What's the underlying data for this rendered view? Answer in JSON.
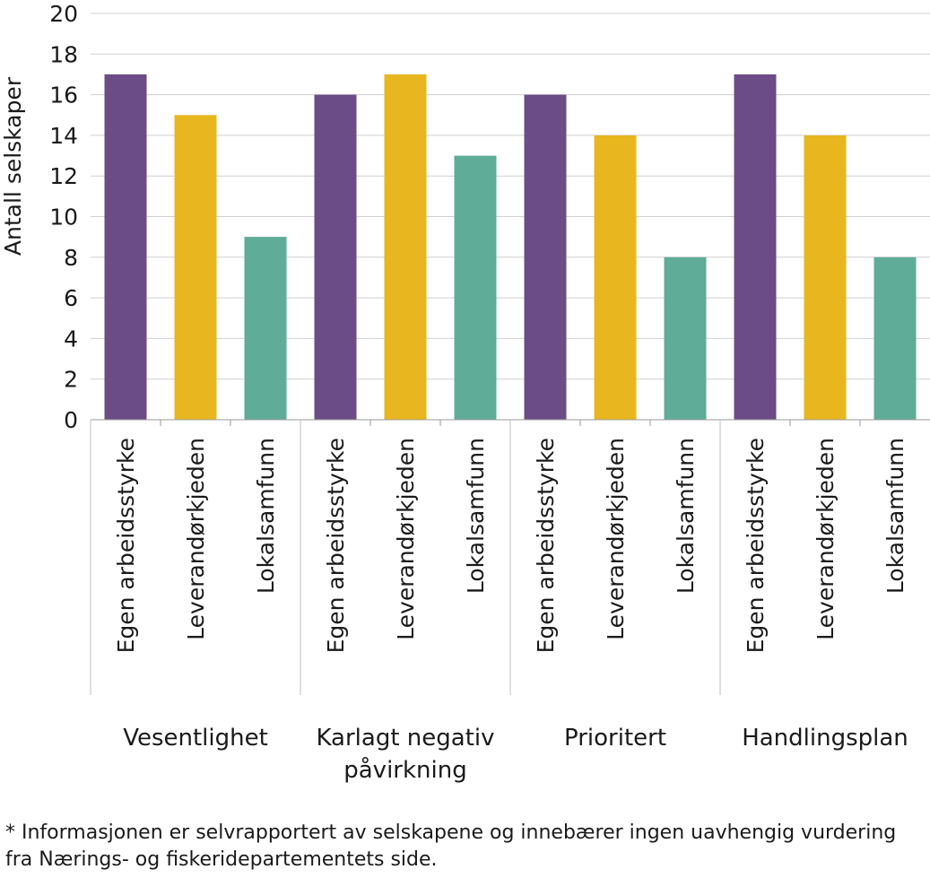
{
  "chart_data": {
    "type": "bar",
    "ylabel": "Antall selskaper",
    "ylim": [
      0,
      20
    ],
    "yticks": [
      0,
      2,
      4,
      6,
      8,
      10,
      12,
      14,
      16,
      18,
      20
    ],
    "grid": true,
    "groups": [
      {
        "label_lines": [
          "Vesentlighet"
        ],
        "bars": [
          {
            "label": "Egen arbeidsstyrke",
            "value": 17,
            "color": "#6b4c86"
          },
          {
            "label": "Leverandørkjeden",
            "value": 15,
            "color": "#e8b61e"
          },
          {
            "label": "Lokalsamfunn",
            "value": 9,
            "color": "#5fac98"
          }
        ]
      },
      {
        "label_lines": [
          "Karlagt negativ",
          "påvirkning"
        ],
        "bars": [
          {
            "label": "Egen arbeidsstyrke",
            "value": 16,
            "color": "#6b4c86"
          },
          {
            "label": "Leverandørkjeden",
            "value": 17,
            "color": "#e8b61e"
          },
          {
            "label": "Lokalsamfunn",
            "value": 13,
            "color": "#5fac98"
          }
        ]
      },
      {
        "label_lines": [
          "Prioritert"
        ],
        "bars": [
          {
            "label": "Egen arbeidsstyrke",
            "value": 16,
            "color": "#6b4c86"
          },
          {
            "label": "Leverandørkjeden",
            "value": 14,
            "color": "#e8b61e"
          },
          {
            "label": "Lokalsamfunn",
            "value": 8,
            "color": "#5fac98"
          }
        ]
      },
      {
        "label_lines": [
          "Handlingsplan"
        ],
        "bars": [
          {
            "label": "Egen arbeidsstyrke",
            "value": 17,
            "color": "#6b4c86"
          },
          {
            "label": "Leverandørkjeden",
            "value": 14,
            "color": "#e8b61e"
          },
          {
            "label": "Lokalsamfunn",
            "value": 8,
            "color": "#5fac98"
          }
        ]
      }
    ]
  },
  "footnote": "* Informasjonen er selvrapportert av selskapene og innebærer ingen uavhengig vurdering fra Nærings- og fiskeridepartementets side."
}
